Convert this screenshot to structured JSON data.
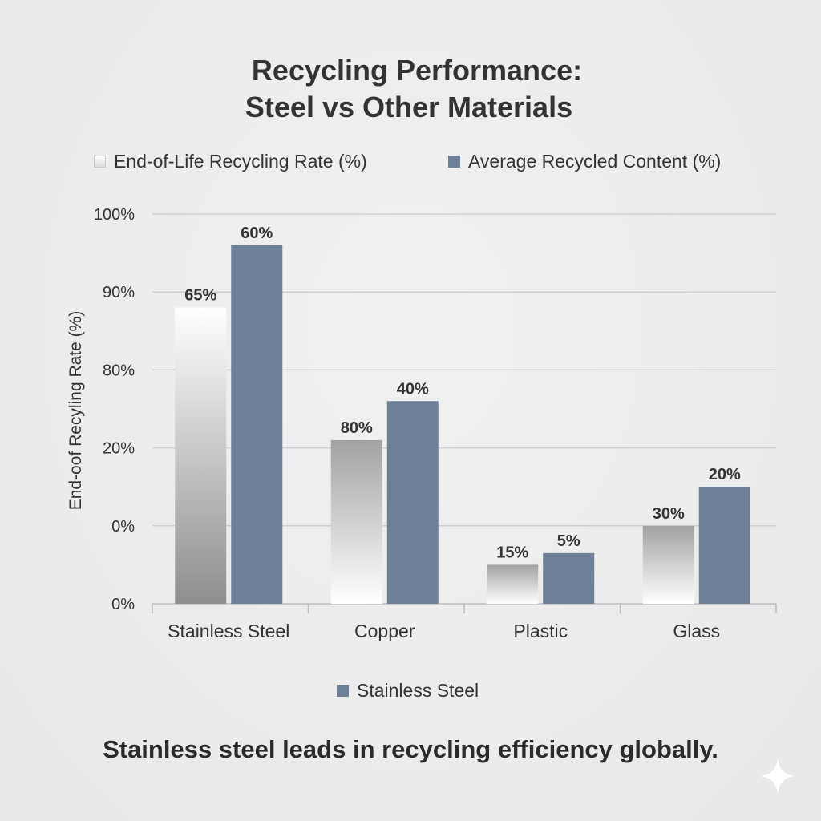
{
  "title_line1": "Recycling Performance:",
  "title_line2": "Steel vs Other Materials",
  "legend": [
    {
      "label": "End-of-Life Recycling Rate (%)",
      "color": "#e2e2e2"
    },
    {
      "label": "Average Recycled Content (%)",
      "color": "#6e7f98"
    }
  ],
  "bottom_legend": {
    "label": "Stainless Steel",
    "color": "#6e7f98"
  },
  "footer": "Stainless steel leads in recycling efficiency globally.",
  "chart_data": {
    "type": "bar",
    "title": "Recycling Performance: Steel vs Other Materials",
    "ylabel": "End-oof Recyling Rate (%)",
    "xlabel": "",
    "grid": true,
    "y_tick_labels": [
      "0%",
      "0%",
      "20%",
      "80%",
      "90%",
      "100%"
    ],
    "y_tick_positions": [
      0,
      1,
      2,
      3,
      4,
      5
    ],
    "ylim": [
      0,
      5
    ],
    "categories": [
      "Stainless Steel",
      "Copper",
      "Plastic",
      "Glass"
    ],
    "series": [
      {
        "name": "End-of-Life Recycling Rate (%)",
        "color": "#e2e2e2",
        "values": [
          3.8,
          2.1,
          0.5,
          1.0
        ],
        "labels": [
          "65%",
          "80%",
          "15%",
          "30%"
        ]
      },
      {
        "name": "Average Recycled Content (%)",
        "color": "#6e7f98",
        "values": [
          4.6,
          2.6,
          0.65,
          1.5
        ],
        "labels": [
          "60%",
          "40%",
          "5%",
          "20%"
        ]
      }
    ]
  }
}
